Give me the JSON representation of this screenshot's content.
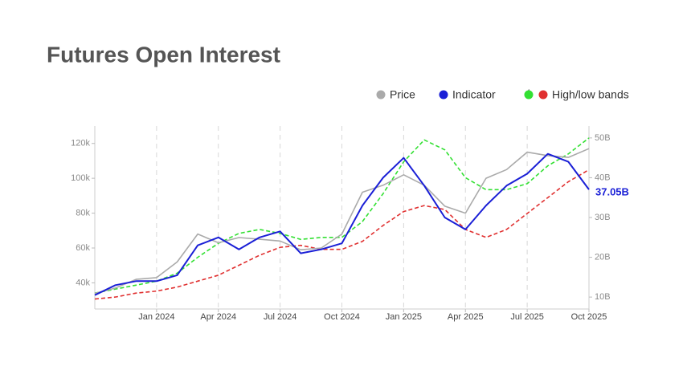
{
  "chart_data": {
    "type": "line",
    "title": "Futures Open Interest",
    "x": [
      "2023-10",
      "2023-11",
      "2023-12",
      "2024-01",
      "2024-02",
      "2024-03",
      "2024-04",
      "2024-05",
      "2024-06",
      "2024-07",
      "2024-08",
      "2024-09",
      "2024-10",
      "2024-11",
      "2024-12",
      "2025-01",
      "2025-02",
      "2025-03",
      "2025-04",
      "2025-05",
      "2025-06",
      "2025-07",
      "2025-08",
      "2025-09",
      "2025-10"
    ],
    "xlim": [
      "2023-10",
      "2025-10"
    ],
    "xticks": [
      {
        "value": "2024-01",
        "label": "Jan 2024"
      },
      {
        "value": "2024-04",
        "label": "Apr 2024"
      },
      {
        "value": "2024-07",
        "label": "Jul 2024"
      },
      {
        "value": "2024-10",
        "label": "Oct 2024"
      },
      {
        "value": "2025-01",
        "label": "Jan 2025"
      },
      {
        "value": "2025-04",
        "label": "Apr 2025"
      },
      {
        "value": "2025-07",
        "label": "Jul 2025"
      },
      {
        "value": "2025-10",
        "label": "Oct 2025"
      }
    ],
    "ylim": [
      25000,
      130000
    ],
    "yticks": [
      {
        "value": 40000,
        "label": "40k"
      },
      {
        "value": 60000,
        "label": "60k"
      },
      {
        "value": 80000,
        "label": "80k"
      },
      {
        "value": 100000,
        "label": "100k"
      },
      {
        "value": 120000,
        "label": "120k"
      }
    ],
    "y2lim": [
      7,
      53
    ],
    "y2ticks": [
      {
        "value": 10,
        "label": "10B"
      },
      {
        "value": 20,
        "label": "20B"
      },
      {
        "value": 30,
        "label": "30B"
      },
      {
        "value": 40,
        "label": "40B"
      },
      {
        "value": 50,
        "label": "50B"
      }
    ],
    "x_grid": true,
    "series": [
      {
        "name": "Price",
        "color": "#aaaaaa",
        "values": [
          34000,
          37000,
          42000,
          43000,
          52000,
          68000,
          63000,
          66000,
          65000,
          64000,
          59000,
          60000,
          68000,
          92000,
          96000,
          102000,
          96000,
          84000,
          80000,
          100000,
          105000,
          115000,
          113000,
          112000,
          117000
        ]
      },
      {
        "name": "Indicator",
        "color": "#1a1fd6",
        "axis": "y2",
        "values": [
          10.5,
          13,
          14,
          14,
          15.5,
          23,
          25,
          22,
          25,
          26.5,
          21,
          22,
          23.5,
          33,
          40,
          45,
          38,
          30,
          27,
          33,
          38,
          41,
          46,
          44,
          37.05
        ],
        "value_labels": [
          null,
          null,
          null,
          null,
          null,
          null,
          null,
          null,
          null,
          null,
          null,
          null,
          null,
          null,
          null,
          null,
          null,
          null,
          null,
          null,
          null,
          null,
          null,
          null,
          "37.05B"
        ]
      }
    ],
    "bands": {
      "name": "High/low bands",
      "axis": "y2",
      "high": {
        "color": "#33e033",
        "values": [
          11,
          12,
          13,
          14,
          16,
          20,
          23.5,
          26,
          27,
          26,
          24.5,
          25,
          25,
          29,
          36,
          44,
          49.5,
          47,
          40,
          37,
          37,
          38.5,
          43,
          46,
          50
        ]
      },
      "low": {
        "color": "#e03030",
        "values": [
          9.5,
          10,
          11,
          11.5,
          12.5,
          14,
          15.5,
          18,
          20.5,
          22.5,
          23,
          22,
          22,
          24,
          28,
          31.5,
          33,
          32,
          27,
          25,
          27,
          31,
          35,
          39,
          42
        ]
      }
    }
  }
}
